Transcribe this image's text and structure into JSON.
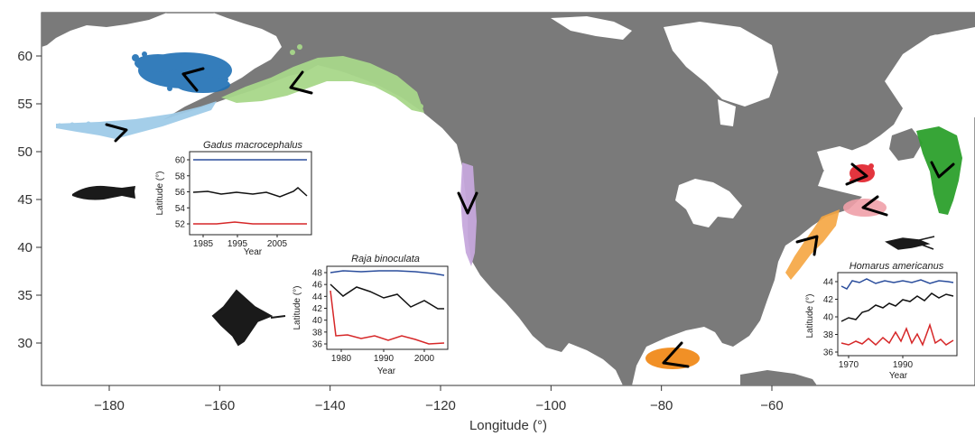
{
  "map": {
    "x_axis": {
      "label": "Longitude (°)",
      "ticks": [
        {
          "value": -180,
          "label": "−180"
        },
        {
          "value": -160,
          "label": "−160"
        },
        {
          "value": -140,
          "label": "−140"
        },
        {
          "value": -120,
          "label": "−120"
        },
        {
          "value": -100,
          "label": "−100"
        },
        {
          "value": -80,
          "label": "−80"
        },
        {
          "value": -60,
          "label": "−60"
        }
      ]
    },
    "y_axis": {
      "ticks": [
        {
          "value": 60,
          "label": "60"
        },
        {
          "value": 55,
          "label": "55"
        },
        {
          "value": 50,
          "label": "50"
        },
        {
          "value": 45,
          "label": "45"
        },
        {
          "value": 40,
          "label": "40"
        },
        {
          "value": 35,
          "label": "35"
        },
        {
          "value": 30,
          "label": "30"
        }
      ]
    },
    "colors": {
      "land": "#7a7a7a",
      "ocean": "#ffffff",
      "dark_blue": "#1f6fb4",
      "light_blue": "#9fcbe8",
      "light_green": "#a8d78a",
      "purple": "#c6a8dc",
      "red": "#e0202a",
      "pink": "#f0a0a8",
      "orange": "#f5a540",
      "dark_orange": "#f08a1a",
      "green": "#2ca02c"
    }
  },
  "insets": {
    "gadus": {
      "title": "Gadus macrocephalus",
      "ylabel": "Latitude (°)",
      "xlabel": "Year",
      "yticks": [
        "52",
        "54",
        "56",
        "58",
        "60"
      ],
      "xticks": [
        "1985",
        "1995",
        "2005"
      ]
    },
    "raja": {
      "title": "Raja binoculata",
      "ylabel": "Latitude (°)",
      "xlabel": "Year",
      "yticks": [
        "36",
        "38",
        "40",
        "42",
        "44",
        "46",
        "48"
      ],
      "xticks": [
        "1980",
        "1990",
        "2000"
      ]
    },
    "homarus": {
      "title": "Homarus americanus",
      "ylabel": "Latitude (°)",
      "xlabel": "Year",
      "yticks": [
        "36",
        "38",
        "40",
        "42",
        "44"
      ],
      "xticks": [
        "1970",
        "1990"
      ]
    }
  }
}
